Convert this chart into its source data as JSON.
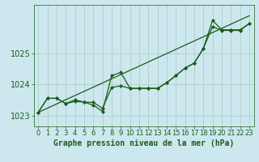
{
  "title": "Graphe pression niveau de la mer (hPa)",
  "bg_color": "#cce8ee",
  "grid_color": "#b0cccc",
  "line_color": "#1a5c1a",
  "marker_color": "#1a5c1a",
  "xlim": [
    -0.5,
    23.5
  ],
  "ylim": [
    1022.65,
    1026.55
  ],
  "yticks": [
    1023,
    1024,
    1025
  ],
  "xticks": [
    0,
    1,
    2,
    3,
    4,
    5,
    6,
    7,
    8,
    9,
    10,
    11,
    12,
    13,
    14,
    15,
    16,
    17,
    18,
    19,
    20,
    21,
    22,
    23
  ],
  "series1": [
    1023.1,
    1023.55,
    1023.55,
    1023.38,
    1023.45,
    1023.43,
    1023.42,
    1023.23,
    1023.9,
    1023.95,
    1023.87,
    1023.87,
    1023.87,
    1023.87,
    1024.05,
    1024.28,
    1024.52,
    1024.68,
    1025.15,
    1025.85,
    1025.73,
    1025.73,
    1025.73,
    1025.95
  ],
  "series2": [
    1023.1,
    1023.55,
    1023.55,
    1023.38,
    1023.5,
    1023.43,
    1023.33,
    1023.13,
    1024.28,
    1024.38,
    1023.87,
    1023.87,
    1023.87,
    1023.87,
    1024.05,
    1024.28,
    1024.52,
    1024.68,
    1025.15,
    1026.05,
    1025.75,
    1025.75,
    1025.75,
    1025.95
  ],
  "trend_x": [
    0,
    23
  ],
  "trend_y": [
    1023.1,
    1026.2
  ],
  "title_fontsize": 7,
  "tick_fontsize": 6,
  "ytick_fontsize": 7
}
